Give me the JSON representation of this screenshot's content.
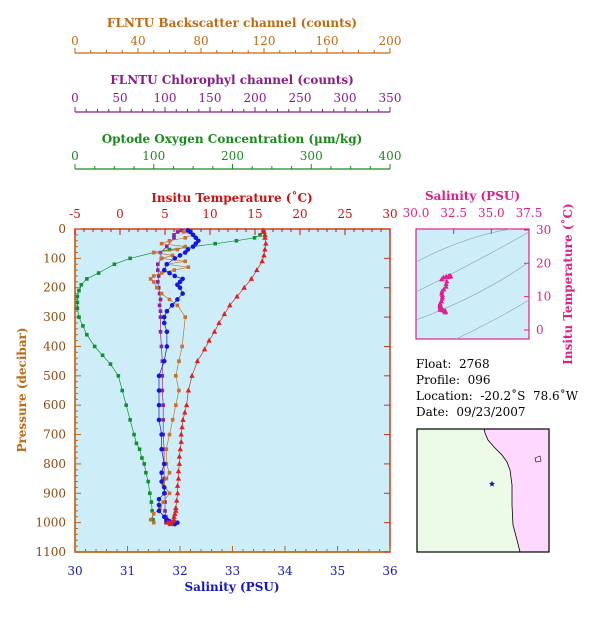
{
  "axes_top": [
    {
      "title": "FLNTU Backscatter channel (counts)",
      "ticks": [
        "0",
        "40",
        "80",
        "120",
        "160",
        "200"
      ],
      "color": "#c06a10"
    },
    {
      "title": "FLNTU Chlorophyl channel (counts)",
      "ticks": [
        "0",
        "50",
        "100",
        "150",
        "200",
        "250",
        "300",
        "350"
      ],
      "color": "#8b1a8b"
    },
    {
      "title": "Optode Oxygen Concentration (µm/kg)",
      "ticks": [
        "0",
        "100",
        "200",
        "300",
        "400"
      ],
      "color": "#1a8a1a"
    }
  ],
  "main_chart": {
    "temp_title": "Insitu Temperature (˚C)",
    "temp_ticks": [
      "-5",
      "0",
      "5",
      "10",
      "15",
      "20",
      "25",
      "30"
    ],
    "sal_title": "Salinity (PSU)",
    "sal_ticks": [
      "30",
      "31",
      "32",
      "33",
      "34",
      "35",
      "36"
    ],
    "pressure_title": "Pressure (decibar)",
    "pressure_ticks": [
      "0",
      "100",
      "200",
      "300",
      "400",
      "500",
      "600",
      "700",
      "800",
      "900",
      "1000",
      "1100"
    ],
    "bg_color": "#cdeef8"
  },
  "ts_chart": {
    "sal_title": "Salinity (PSU)",
    "sal_ticks": [
      "30.0",
      "32.5",
      "35.0",
      "37.5"
    ],
    "temp_title": "Insitu Temperature (˚C)",
    "temp_ticks": [
      "30",
      "20",
      "10",
      "0"
    ],
    "color": "#e0208a"
  },
  "info": {
    "float": "Float:  2768",
    "profile": "Profile:  096",
    "location": "Location:  -20.2˚S  78.6˚W",
    "date": "Date:  09/23/2007"
  },
  "map": {
    "land_color": "#ffd8ff",
    "ocean_color": "#ecfbe8",
    "marker_color": "#1010c0"
  },
  "chart_data": {
    "type": "line",
    "y_axis": {
      "label": "Pressure (decibar)",
      "range": [
        0,
        1100
      ],
      "inverted": true
    },
    "series": [
      {
        "name": "Insitu Temperature (˚C)",
        "axis": "temp",
        "range": [
          -5,
          30
        ],
        "color": "#e02020",
        "marker": "triangle",
        "x": [
          15.9,
          16.0,
          16.1,
          16.1,
          16.2,
          16.1,
          16.0,
          15.8,
          15.2,
          14.6,
          13.8,
          13.0,
          12.2,
          11.6,
          11.0,
          10.5,
          9.9,
          9.4,
          8.6,
          8.0,
          7.6,
          7.4,
          7.2,
          7.0,
          6.9,
          6.8,
          6.8,
          6.7,
          6.6,
          6.6,
          6.5,
          6.5,
          6.4,
          6.4,
          6.3,
          6.2,
          6.2,
          6.1,
          6.0,
          6.0,
          5.9,
          5.7,
          5.6,
          5.5,
          5.3
        ],
        "y": [
          5,
          10,
          20,
          30,
          50,
          70,
          90,
          110,
          140,
          170,
          200,
          230,
          260,
          290,
          320,
          350,
          380,
          410,
          450,
          500,
          550,
          600,
          625,
          650,
          675,
          700,
          725,
          750,
          775,
          800,
          825,
          850,
          875,
          900,
          925,
          950,
          960,
          970,
          980,
          990,
          995,
          1000,
          1005,
          1000,
          1000
        ]
      },
      {
        "name": "Salinity (PSU)",
        "axis": "sal",
        "range": [
          30,
          36
        ],
        "color": "#1515e0",
        "marker": "circle",
        "x": [
          32.15,
          32.2,
          32.25,
          32.3,
          32.35,
          32.3,
          32.25,
          32.15,
          32.1,
          32.0,
          31.9,
          31.75,
          31.7,
          31.8,
          31.9,
          32.05,
          32.0,
          31.95,
          32.0,
          32.05,
          31.95,
          31.85,
          31.75,
          31.7,
          31.7,
          31.75,
          31.75,
          31.7,
          31.6,
          31.6,
          31.6,
          31.6,
          31.65,
          31.65,
          31.7,
          31.65,
          31.65,
          31.7,
          31.7,
          31.6,
          31.6,
          31.6,
          31.7,
          31.75,
          31.8,
          31.95,
          31.9
        ],
        "y": [
          5,
          10,
          20,
          30,
          40,
          50,
          60,
          70,
          80,
          90,
          100,
          120,
          140,
          150,
          160,
          170,
          180,
          190,
          200,
          220,
          240,
          260,
          280,
          300,
          320,
          350,
          400,
          450,
          500,
          550,
          600,
          650,
          700,
          750,
          800,
          830,
          860,
          880,
          900,
          920,
          940,
          960,
          980,
          990,
          995,
          1000,
          1005
        ]
      },
      {
        "name": "FLNTU Backscatter channel (counts)",
        "axis": "bs",
        "range": [
          0,
          200
        ],
        "color": "#c87030",
        "marker": "square",
        "x": [
          69,
          75,
          70,
          60,
          55,
          70,
          65,
          50,
          62,
          55,
          70,
          58,
          72,
          63,
          55,
          50,
          48,
          50,
          52,
          55,
          60,
          65,
          70,
          68,
          66,
          64,
          66,
          64,
          62,
          60,
          58,
          58,
          60,
          58,
          56,
          60,
          56,
          54,
          50,
          48,
          50
        ],
        "y": [
          10,
          20,
          30,
          40,
          50,
          60,
          70,
          80,
          90,
          100,
          110,
          120,
          130,
          140,
          150,
          160,
          170,
          180,
          200,
          220,
          240,
          260,
          300,
          400,
          450,
          500,
          550,
          600,
          650,
          700,
          750,
          800,
          830,
          850,
          870,
          900,
          930,
          950,
          970,
          990,
          1000
        ]
      },
      {
        "name": "FLNTU Chlorophyl channel (counts)",
        "axis": "chl",
        "range": [
          0,
          350
        ],
        "color": "#9020a0",
        "marker": "square",
        "x": [
          118,
          114,
          110,
          110,
          102,
          95,
          96,
          92,
          92,
          93,
          92,
          93,
          94,
          95,
          94,
          95,
          95,
          95,
          96,
          97,
          97,
          97,
          98,
          98,
          98,
          99,
          99,
          99,
          100,
          100,
          100,
          101,
          101,
          101
        ],
        "y": [
          5,
          10,
          20,
          30,
          60,
          80,
          100,
          120,
          140,
          160,
          180,
          200,
          220,
          240,
          260,
          280,
          300,
          350,
          400,
          450,
          500,
          550,
          600,
          650,
          700,
          750,
          800,
          850,
          900,
          930,
          960,
          980,
          990,
          1000
        ]
      },
      {
        "name": "Optode Oxygen Concentration (µm/kg)",
        "axis": "oxy",
        "range": [
          0,
          400
        ],
        "color": "#109030",
        "marker": "square",
        "x": [
          240,
          235,
          228,
          205,
          178,
          150,
          120,
          100,
          70,
          50,
          30,
          15,
          8,
          5,
          3,
          3,
          3,
          5,
          10,
          15,
          25,
          35,
          45,
          55,
          60,
          65,
          70,
          75,
          78,
          82,
          85,
          88,
          90,
          93,
          95,
          97,
          98,
          99,
          100
        ],
        "y": [
          10,
          20,
          30,
          40,
          50,
          60,
          70,
          80,
          100,
          120,
          150,
          170,
          190,
          210,
          230,
          250,
          270,
          300,
          330,
          360,
          400,
          430,
          460,
          500,
          550,
          600,
          650,
          700,
          730,
          750,
          780,
          800,
          830,
          860,
          900,
          930,
          960,
          990,
          1000
        ]
      }
    ]
  }
}
